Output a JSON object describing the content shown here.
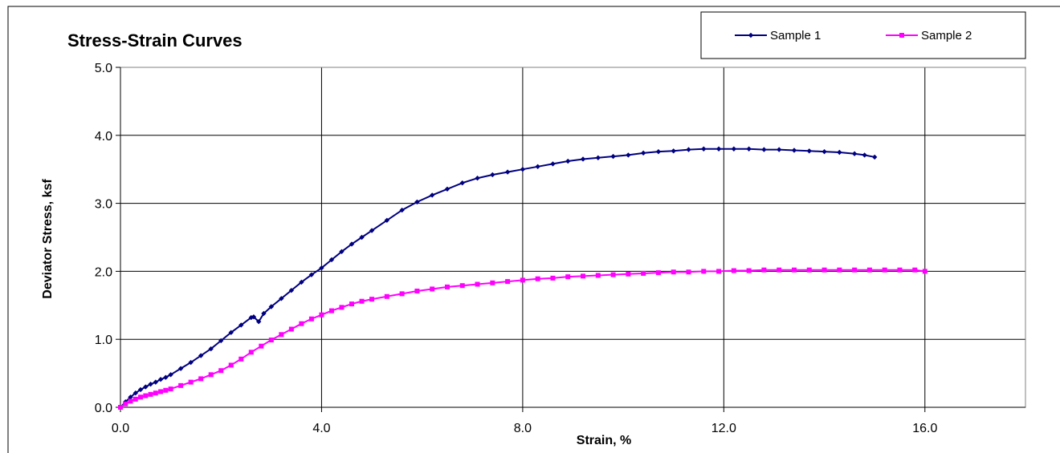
{
  "chart_data": {
    "type": "line",
    "title": "Stress-Strain Curves",
    "xlabel": "Strain, %",
    "ylabel": "Deviator Stress, ksf",
    "xlim": [
      0,
      18
    ],
    "ylim": [
      0,
      5
    ],
    "xticks": [
      "0.0",
      "4.0",
      "8.0",
      "12.0",
      "16.0"
    ],
    "xtick_values": [
      0,
      4,
      8,
      12,
      16
    ],
    "yticks": [
      "0.0",
      "1.0",
      "2.0",
      "3.0",
      "4.0",
      "5.0"
    ],
    "ytick_values": [
      0,
      1,
      2,
      3,
      4,
      5
    ],
    "grid": true,
    "legend_position": "top-right",
    "series": [
      {
        "name": "Sample 1",
        "color": "#000080",
        "marker": "diamond",
        "x": [
          0,
          0.1,
          0.2,
          0.3,
          0.4,
          0.5,
          0.6,
          0.7,
          0.8,
          0.9,
          1.0,
          1.2,
          1.4,
          1.6,
          1.8,
          2.0,
          2.2,
          2.4,
          2.6,
          2.65,
          2.75,
          2.85,
          3.0,
          3.2,
          3.4,
          3.6,
          3.8,
          4.0,
          4.2,
          4.4,
          4.6,
          4.8,
          5.0,
          5.3,
          5.6,
          5.9,
          6.2,
          6.5,
          6.8,
          7.1,
          7.4,
          7.7,
          8.0,
          8.3,
          8.6,
          8.9,
          9.2,
          9.5,
          9.8,
          10.1,
          10.4,
          10.7,
          11.0,
          11.3,
          11.6,
          11.9,
          12.2,
          12.5,
          12.8,
          13.1,
          13.4,
          13.7,
          14.0,
          14.3,
          14.6,
          14.8,
          15.0
        ],
        "y": [
          0,
          0.08,
          0.15,
          0.21,
          0.26,
          0.3,
          0.34,
          0.37,
          0.41,
          0.44,
          0.48,
          0.57,
          0.66,
          0.76,
          0.86,
          0.98,
          1.1,
          1.21,
          1.32,
          1.33,
          1.26,
          1.38,
          1.48,
          1.6,
          1.72,
          1.84,
          1.95,
          2.05,
          2.17,
          2.29,
          2.4,
          2.5,
          2.6,
          2.75,
          2.9,
          3.02,
          3.12,
          3.21,
          3.3,
          3.37,
          3.42,
          3.46,
          3.5,
          3.54,
          3.58,
          3.62,
          3.65,
          3.67,
          3.69,
          3.71,
          3.74,
          3.76,
          3.77,
          3.79,
          3.8,
          3.8,
          3.8,
          3.8,
          3.79,
          3.79,
          3.78,
          3.77,
          3.76,
          3.75,
          3.73,
          3.71,
          3.68
        ]
      },
      {
        "name": "Sample 2",
        "color": "#FF00FF",
        "marker": "square",
        "x": [
          0,
          0.1,
          0.2,
          0.3,
          0.4,
          0.5,
          0.6,
          0.7,
          0.8,
          0.9,
          1.0,
          1.2,
          1.4,
          1.6,
          1.8,
          2.0,
          2.2,
          2.4,
          2.6,
          2.8,
          3.0,
          3.2,
          3.4,
          3.6,
          3.8,
          4.0,
          4.2,
          4.4,
          4.6,
          4.8,
          5.0,
          5.3,
          5.6,
          5.9,
          6.2,
          6.5,
          6.8,
          7.1,
          7.4,
          7.7,
          8.0,
          8.3,
          8.6,
          8.9,
          9.2,
          9.5,
          9.8,
          10.1,
          10.4,
          10.7,
          11.0,
          11.3,
          11.6,
          11.9,
          12.2,
          12.5,
          12.8,
          13.1,
          13.4,
          13.7,
          14.0,
          14.3,
          14.6,
          14.9,
          15.2,
          15.5,
          15.8,
          16.0
        ],
        "y": [
          0,
          0.05,
          0.09,
          0.12,
          0.15,
          0.17,
          0.19,
          0.21,
          0.23,
          0.25,
          0.27,
          0.32,
          0.37,
          0.42,
          0.48,
          0.54,
          0.62,
          0.71,
          0.81,
          0.9,
          0.99,
          1.07,
          1.15,
          1.23,
          1.3,
          1.36,
          1.42,
          1.47,
          1.52,
          1.56,
          1.59,
          1.63,
          1.67,
          1.71,
          1.74,
          1.77,
          1.79,
          1.81,
          1.83,
          1.85,
          1.87,
          1.89,
          1.9,
          1.92,
          1.93,
          1.94,
          1.95,
          1.96,
          1.97,
          1.98,
          1.99,
          1.99,
          2.0,
          2.0,
          2.01,
          2.01,
          2.02,
          2.02,
          2.02,
          2.02,
          2.02,
          2.02,
          2.02,
          2.02,
          2.02,
          2.02,
          2.02,
          2.0
        ]
      }
    ]
  }
}
